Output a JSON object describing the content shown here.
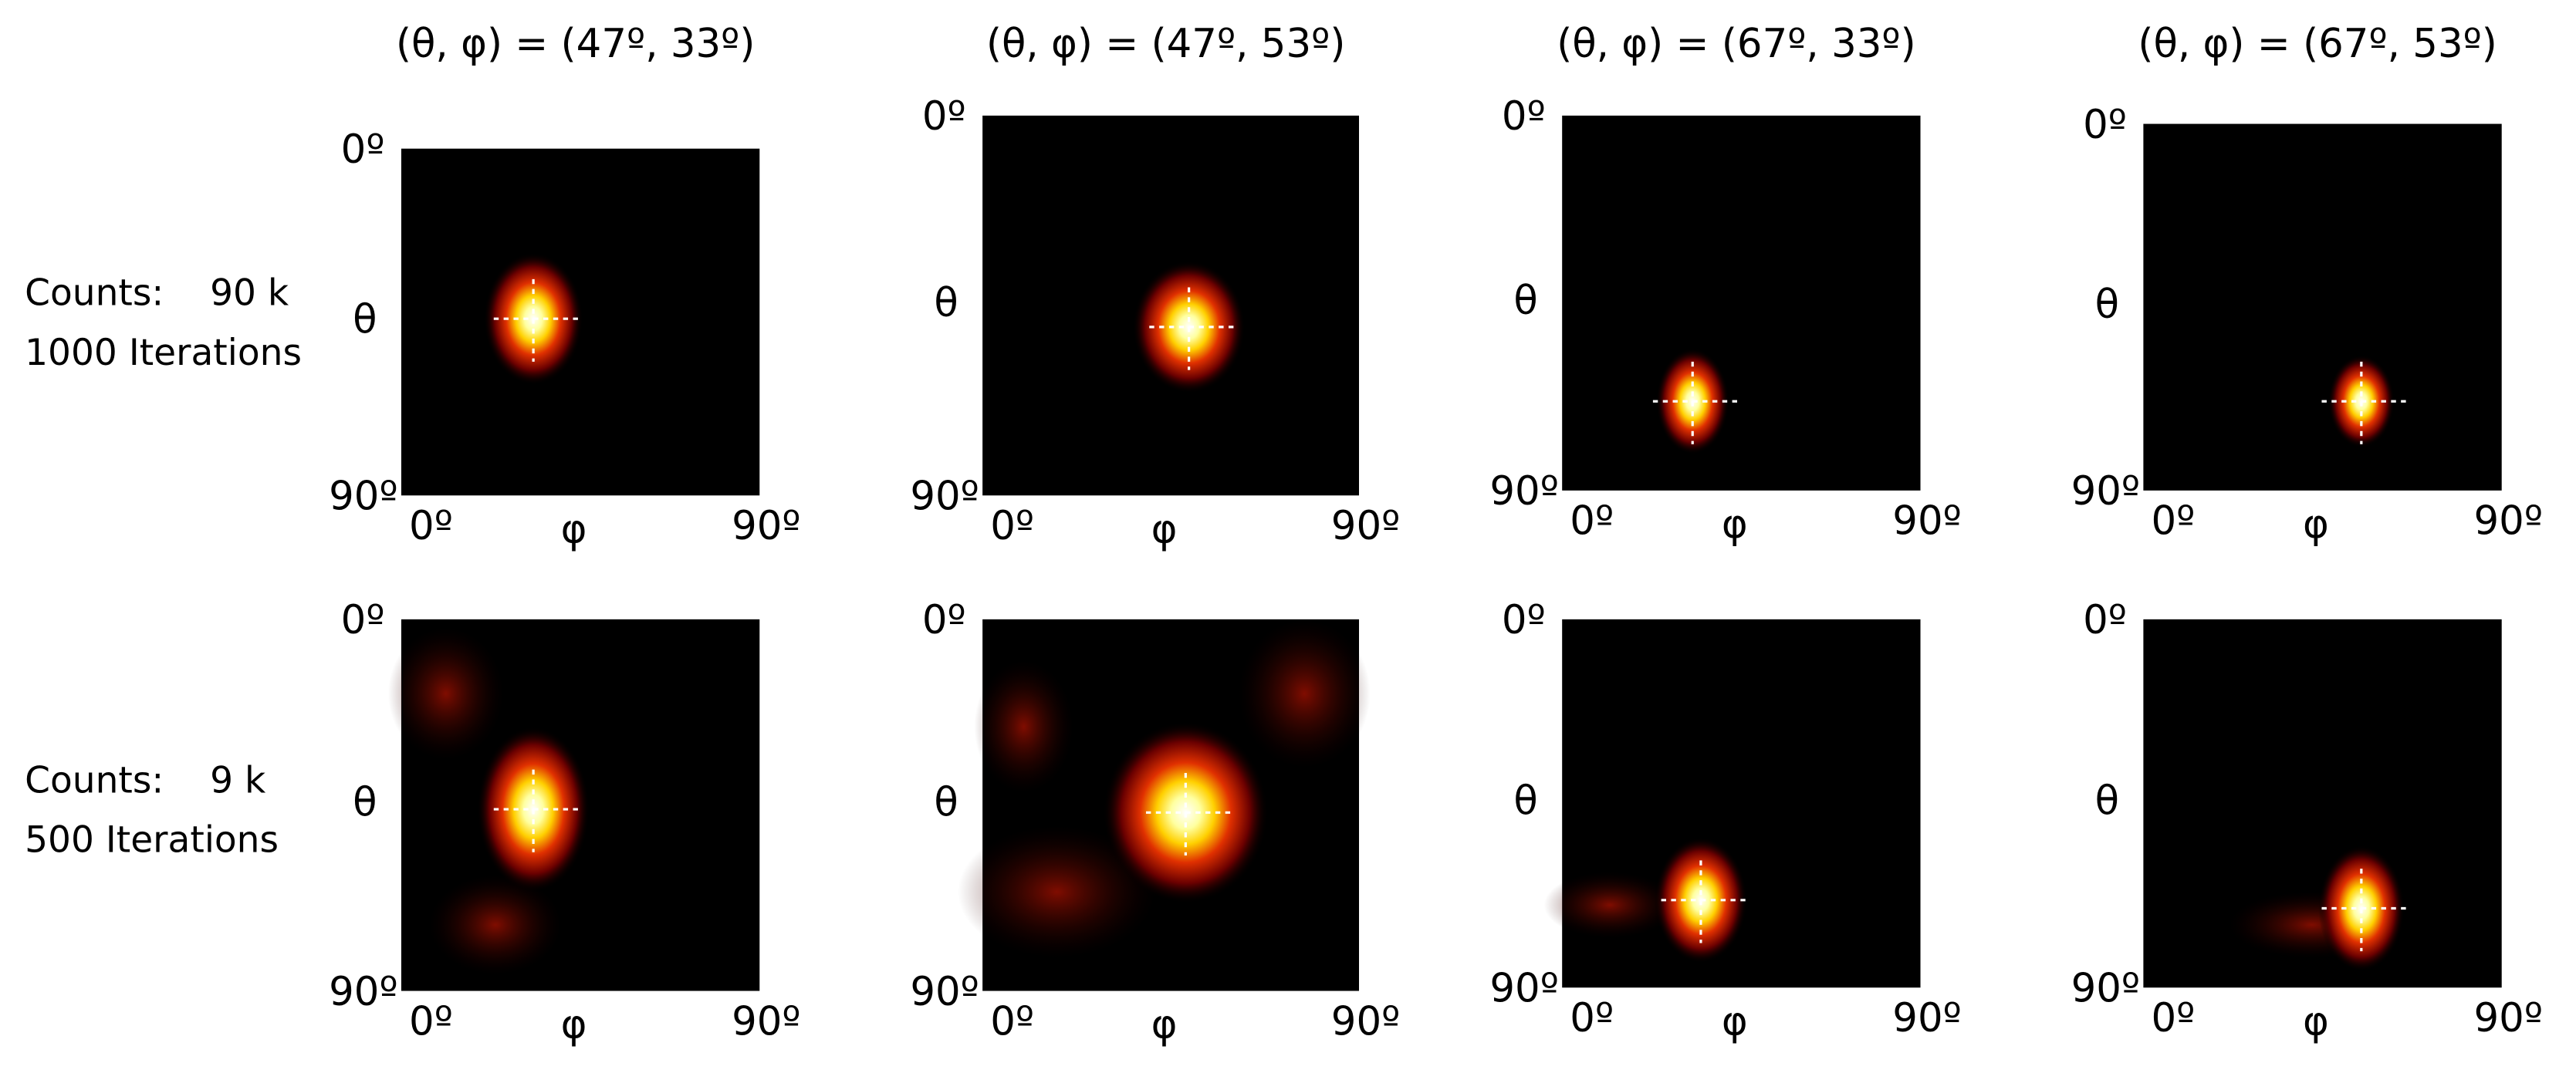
{
  "columns": [
    {
      "title": "(θ, φ) = (47º, 33º)"
    },
    {
      "title": "(θ, φ) = (47º, 53º)"
    },
    {
      "title": "(θ, φ) = (67º, 33º)"
    },
    {
      "title": "(θ, φ) = (67º, 53º)"
    }
  ],
  "rows": [
    {
      "counts": "Counts:    90 k",
      "iterations": "1000 Iterations"
    },
    {
      "counts": "Counts:    9 k",
      "iterations": "500 Iterations"
    }
  ],
  "axis": {
    "theta_min": "0º",
    "theta_label": "θ",
    "theta_max": "90º",
    "phi_min": "0º",
    "phi_label": "φ",
    "phi_max": "90º"
  }
}
